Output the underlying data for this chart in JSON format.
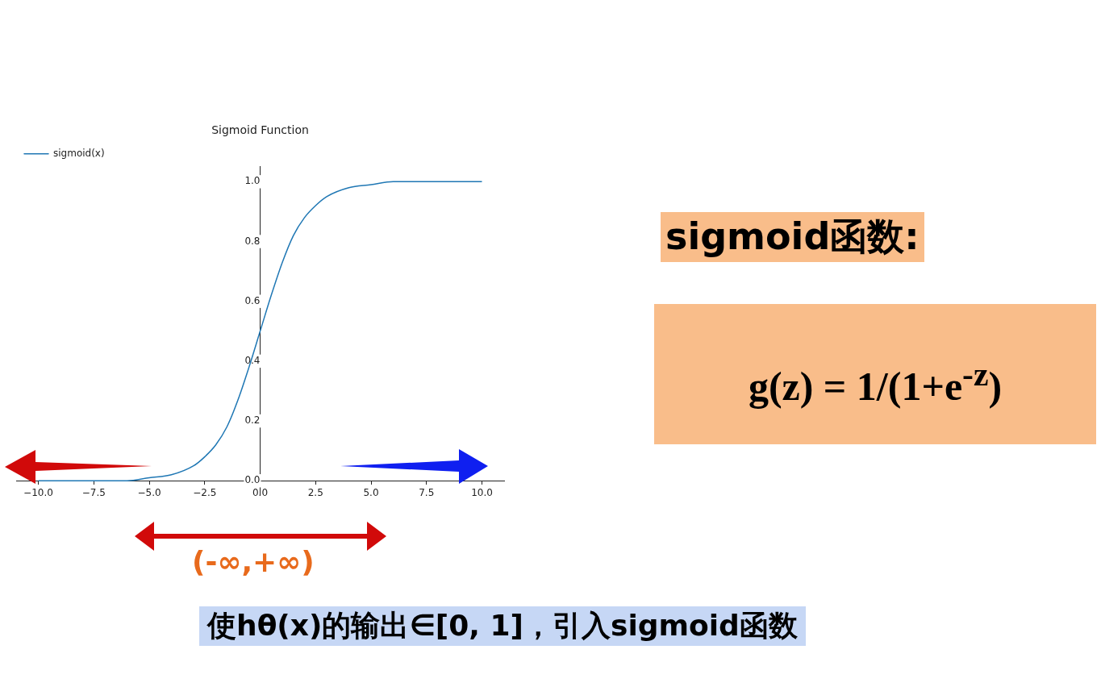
{
  "chart_data": {
    "type": "line",
    "title": "Sigmoid Function",
    "x": [
      -10,
      -8,
      -6,
      -5,
      -4,
      -3,
      -2.5,
      -2,
      -1.5,
      -1,
      -0.5,
      0,
      0.5,
      1,
      1.5,
      2,
      2.5,
      3,
      4,
      5,
      6,
      8,
      10
    ],
    "series": [
      {
        "name": "sigmoid(x)",
        "color": "#1f77b4",
        "values": [
          0,
          0,
          0,
          0.01,
          0.02,
          0.05,
          0.08,
          0.12,
          0.18,
          0.27,
          0.38,
          0.5,
          0.62,
          0.73,
          0.82,
          0.88,
          0.92,
          0.95,
          0.98,
          0.99,
          1,
          1,
          1
        ]
      }
    ],
    "xlim": [
      -11,
      11
    ],
    "xticks": [
      {
        "value": -10,
        "label": "−10.0"
      },
      {
        "value": -7.5,
        "label": "−7.5"
      },
      {
        "value": -5,
        "label": "−5.0"
      },
      {
        "value": -2.5,
        "label": "−2.5"
      },
      {
        "value": 0,
        "label": "0.0"
      },
      2.5,
      {
        "value": 5,
        "label": "5.0"
      },
      7.5,
      {
        "value": 10,
        "label": "10.0"
      }
    ],
    "ylim": [
      -0.05,
      1.05
    ],
    "yticks": [
      {
        "value": 0,
        "label": "0.0"
      },
      0.2,
      0.4,
      0.6,
      0.8,
      {
        "value": 1,
        "label": "1.0"
      }
    ],
    "legend": "top left",
    "annotations": [
      "sigmoid函数:",
      "g(z) = 1/(1+e$^{-z}$)",
      "(-∞,+∞)",
      "使hθ(x)的输出∈[0, 1]，引入sigmoid函数"
    ]
  }
}
